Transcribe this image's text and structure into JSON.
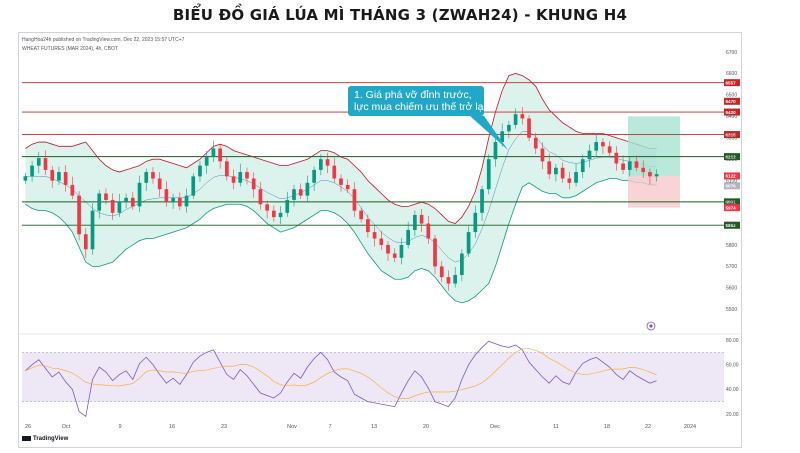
{
  "title": "BIỂU ĐỒ GIÁ LÚA MÌ THÁNG 3 (ZWAH24) - KHUNG H4",
  "meta": "HangHoa24h published on TradingView.com, Dec 22, 2023 15:57 UTC+7",
  "symbol": "WHEAT FUTURES (MAR 2024), 4h, CBOT",
  "annotation": {
    "lines": [
      "1. Giá phá vỡ đỉnh trước,",
      "lực mua chiếm ưu thế trở lại"
    ]
  },
  "brand": "TradingView",
  "colors": {
    "up": "#089981",
    "down": "#f23645",
    "band": "#c8102e",
    "band_fill": "#bfeadf",
    "support": "#1b5e20",
    "resistance": "#c62828",
    "rsi_fill": "#ede7f6",
    "rsi_line": "#7e57c2",
    "rsi_ma": "#f9a825",
    "callout": "#22a8c7",
    "pos_profit": "#a7e3d1",
    "pos_loss": "#f8c9cd"
  },
  "chart_data": {
    "type": "candlestick",
    "price_axis": {
      "ylim": [
        5400,
        6700
      ],
      "ticks": [
        "6700",
        "6600",
        "6500",
        "6400",
        "6300",
        "6200",
        "6100",
        "6000",
        "5900",
        "5800",
        "5700",
        "5600",
        "5500"
      ]
    },
    "x_ticks": [
      "26",
      "Oct",
      "9",
      "16",
      "23",
      "Nov",
      "7",
      "13",
      "20",
      "Dec",
      "11",
      "18",
      "22",
      "2024"
    ],
    "levels": [
      {
        "label": "6557",
        "value": 6557,
        "kind": "resistance"
      },
      {
        "label": "6420",
        "value": 6420,
        "kind": "resistance"
      },
      {
        "label": "6315",
        "value": 6315,
        "kind": "resistance"
      },
      {
        "label": "6212",
        "value": 6212,
        "kind": "support"
      },
      {
        "label": "6001",
        "value": 6001,
        "kind": "support"
      },
      {
        "label": "5892",
        "value": 5892,
        "kind": "support"
      }
    ],
    "extra_labels": [
      {
        "label": "6470",
        "value": 6470
      },
      {
        "label": "6122",
        "value": 6122
      },
      {
        "label": "6076",
        "value": 6076
      },
      {
        "label": "5974",
        "value": 5974
      }
    ],
    "close": [
      6120,
      6170,
      6205,
      6150,
      6100,
      6140,
      6080,
      6030,
      5850,
      5780,
      5960,
      6040,
      6010,
      5950,
      6000,
      6020,
      5980,
      6090,
      6140,
      6110,
      6060,
      6000,
      6020,
      5980,
      6030,
      6120,
      6170,
      6210,
      6250,
      6190,
      6120,
      6090,
      6140,
      6110,
      6060,
      5990,
      5960,
      5930,
      5950,
      6010,
      6060,
      6030,
      6090,
      6150,
      6200,
      6170,
      6110,
      6080,
      6060,
      5960,
      5920,
      5860,
      5830,
      5800,
      5760,
      5740,
      5800,
      5870,
      5940,
      5900,
      5830,
      5700,
      5650,
      5620,
      5660,
      5760,
      5860,
      5950,
      6060,
      6200,
      6280,
      6330,
      6360,
      6410,
      6390,
      6300,
      6250,
      6190,
      6130,
      6160,
      6110,
      6090,
      6140,
      6200,
      6240,
      6280,
      6260,
      6230,
      6180,
      6150,
      6190,
      6160,
      6140,
      6120,
      6130
    ],
    "bb_upper": [
      6250,
      6270,
      6280,
      6280,
      6270,
      6260,
      6260,
      6260,
      6270,
      6280,
      6240,
      6200,
      6170,
      6150,
      6140,
      6150,
      6160,
      6170,
      6190,
      6200,
      6200,
      6190,
      6180,
      6170,
      6160,
      6180,
      6200,
      6230,
      6260,
      6270,
      6260,
      6240,
      6230,
      6220,
      6210,
      6200,
      6190,
      6180,
      6170,
      6170,
      6180,
      6190,
      6200,
      6220,
      6240,
      6240,
      6230,
      6210,
      6200,
      6170,
      6140,
      6100,
      6070,
      6040,
      6010,
      5990,
      5980,
      5980,
      5990,
      6000,
      5990,
      5970,
      5940,
      5910,
      5900,
      5930,
      5980,
      6050,
      6160,
      6300,
      6420,
      6520,
      6590,
      6600,
      6590,
      6570,
      6540,
      6480,
      6430,
      6400,
      6370,
      6350,
      6330,
      6320,
      6320,
      6320,
      6320,
      6310,
      6300,
      6290,
      6280,
      6270,
      6260,
      6250,
      6250
    ],
    "bb_lower": [
      5990,
      5970,
      5960,
      5960,
      5950,
      5930,
      5900,
      5860,
      5790,
      5720,
      5700,
      5700,
      5710,
      5720,
      5750,
      5780,
      5800,
      5820,
      5830,
      5830,
      5840,
      5850,
      5860,
      5870,
      5880,
      5900,
      5920,
      5950,
      5970,
      5980,
      5990,
      5990,
      5990,
      5980,
      5960,
      5930,
      5900,
      5880,
      5860,
      5870,
      5880,
      5900,
      5920,
      5940,
      5960,
      5960,
      5950,
      5930,
      5900,
      5860,
      5810,
      5760,
      5720,
      5680,
      5660,
      5640,
      5640,
      5650,
      5680,
      5690,
      5680,
      5650,
      5610,
      5570,
      5540,
      5530,
      5540,
      5560,
      5590,
      5620,
      5700,
      5800,
      5900,
      5990,
      6070,
      6090,
      6070,
      6050,
      6040,
      6040,
      6020,
      6020,
      6030,
      6050,
      6070,
      6090,
      6100,
      6110,
      6110,
      6100,
      6100,
      6090,
      6090,
      6080,
      6080
    ],
    "rsi": {
      "ylim": [
        20,
        80
      ],
      "ticks": [
        "80.00",
        "60.00",
        "40.00",
        "20.00"
      ],
      "bands": [
        70,
        30
      ],
      "values": [
        55,
        60,
        64,
        57,
        50,
        54,
        46,
        40,
        22,
        18,
        48,
        58,
        54,
        47,
        52,
        55,
        48,
        61,
        66,
        60,
        52,
        45,
        49,
        44,
        52,
        62,
        67,
        70,
        72,
        62,
        52,
        48,
        56,
        51,
        44,
        37,
        35,
        33,
        37,
        46,
        53,
        49,
        58,
        65,
        70,
        64,
        54,
        50,
        47,
        36,
        33,
        30,
        29,
        28,
        27,
        26,
        37,
        47,
        55,
        50,
        41,
        30,
        28,
        26,
        33,
        48,
        60,
        68,
        74,
        79,
        77,
        75,
        74,
        76,
        72,
        62,
        56,
        50,
        45,
        51,
        46,
        44,
        54,
        61,
        64,
        66,
        62,
        58,
        52,
        48,
        55,
        51,
        48,
        45,
        47
      ]
    },
    "position_tool": {
      "entry": 6122,
      "target": 6400,
      "stop": 5974
    }
  }
}
